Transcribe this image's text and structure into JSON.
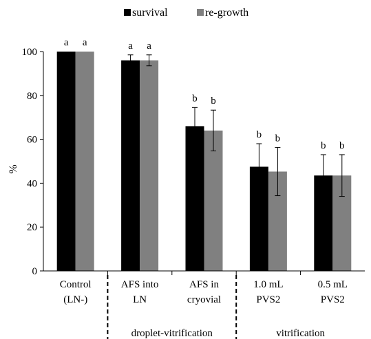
{
  "chart_data": {
    "type": "bar",
    "ylabel": "%",
    "ylim": [
      0,
      100
    ],
    "yticks": [
      0,
      20,
      40,
      60,
      80,
      100
    ],
    "grid": false,
    "legend_position": "top-center",
    "categories": [
      [
        "Control",
        "(LN-)"
      ],
      [
        "AFS into",
        "LN"
      ],
      [
        "AFS in",
        "cryovial"
      ],
      [
        "1.0 mL",
        "PVS2"
      ],
      [
        "0.5 mL",
        "PVS2"
      ]
    ],
    "series": [
      {
        "name": "survival",
        "color": "#000000",
        "values": [
          100,
          96,
          66,
          47.5,
          43.5
        ],
        "errors": [
          0,
          2.5,
          8.5,
          10.5,
          9.5
        ],
        "letters": [
          "a",
          "a",
          "b",
          "b",
          "b"
        ]
      },
      {
        "name": "re-growth",
        "color": "#808080",
        "values": [
          100,
          96,
          64,
          45.3,
          43.5
        ],
        "errors": [
          0,
          2.5,
          9.3,
          11,
          9.5
        ],
        "letters": [
          "a",
          "a",
          "b",
          "b",
          "b"
        ]
      }
    ],
    "groups": [
      {
        "label": "droplet-vitrification",
        "start": 1,
        "end": 2
      },
      {
        "label": "vitrification",
        "start": 3,
        "end": 4
      }
    ]
  }
}
